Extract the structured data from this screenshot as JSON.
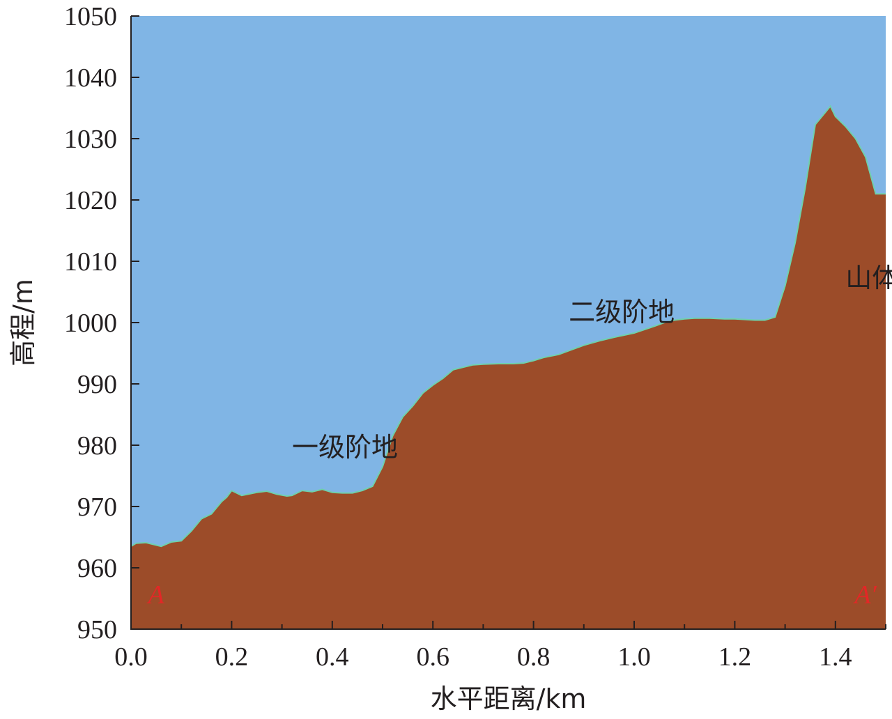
{
  "chart_data": {
    "type": "area",
    "title": "",
    "xlabel": "水平距离/km",
    "ylabel": "高程/m",
    "xlim": [
      0.0,
      1.5
    ],
    "ylim": [
      950,
      1050
    ],
    "x_ticks": [
      "0.0",
      "0.2",
      "0.4",
      "0.6",
      "0.8",
      "1.0",
      "1.2",
      "1.4"
    ],
    "y_ticks": [
      "950",
      "960",
      "970",
      "980",
      "990",
      "1000",
      "1010",
      "1020",
      "1030",
      "1040",
      "1050"
    ],
    "grid": false,
    "legend": "none",
    "colors": {
      "sky": "#80b5e5",
      "terrain": "#9c4c29",
      "profile_line": "#6fd0ac",
      "endpoint_label": "#e32726"
    },
    "series": [
      {
        "x": [
          0.0,
          0.01,
          0.03,
          0.06,
          0.08,
          0.1,
          0.12,
          0.14,
          0.16,
          0.18,
          0.19,
          0.2,
          0.22,
          0.25,
          0.27,
          0.29,
          0.31,
          0.32,
          0.34,
          0.36,
          0.38,
          0.4,
          0.42,
          0.44,
          0.46,
          0.48,
          0.5,
          0.52,
          0.54,
          0.56,
          0.58,
          0.6,
          0.62,
          0.64,
          0.66,
          0.68,
          0.7,
          0.73,
          0.76,
          0.78,
          0.8,
          0.82,
          0.85,
          0.88,
          0.9,
          0.93,
          0.96,
          1.0,
          1.04,
          1.06,
          1.08,
          1.1,
          1.12,
          1.15,
          1.18,
          1.2,
          1.22,
          1.24,
          1.26,
          1.28,
          1.3,
          1.32,
          1.34,
          1.36,
          1.38,
          1.39,
          1.4,
          1.42,
          1.44,
          1.46,
          1.48,
          1.5
        ],
        "y": [
          963.5,
          964.0,
          964.1,
          963.5,
          964.2,
          964.4,
          966.0,
          968.0,
          968.8,
          970.8,
          971.5,
          972.6,
          971.8,
          972.3,
          972.5,
          972.0,
          971.7,
          971.8,
          972.6,
          972.4,
          972.8,
          972.3,
          972.2,
          972.2,
          972.6,
          973.3,
          976.5,
          981.5,
          984.6,
          986.4,
          988.5,
          989.8,
          990.9,
          992.3,
          992.7,
          993.1,
          993.2,
          993.3,
          993.3,
          993.4,
          993.8,
          994.3,
          994.8,
          995.7,
          996.3,
          997.0,
          997.6,
          998.3,
          999.4,
          1000.0,
          1000.4,
          1000.6,
          1000.7,
          1000.7,
          1000.6,
          1000.6,
          1000.5,
          1000.4,
          1000.4,
          1000.9,
          1006.0,
          1013.0,
          1022.0,
          1032.3,
          1034.3,
          1035.3,
          1033.6,
          1032.0,
          1030.0,
          1027.0,
          1021.0,
          1021.0
        ]
      }
    ],
    "annotations": [
      {
        "text": "一级阶地",
        "x": 0.32,
        "y": 978.2
      },
      {
        "text": "二级阶地",
        "x": 0.87,
        "y": 1000.2
      },
      {
        "text": "山体",
        "x": 1.42,
        "y": 1005.8
      }
    ],
    "endpoints": [
      {
        "text": "A",
        "x": 0.05,
        "y": 954.2
      },
      {
        "text": "A′",
        "x": 1.46,
        "y": 954.2
      }
    ]
  }
}
